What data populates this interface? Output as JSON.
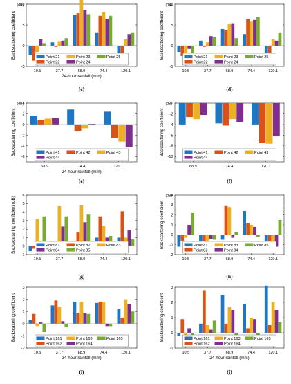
{
  "colors": {
    "series": [
      "#1f77c4",
      "#d95319",
      "#edb120",
      "#7e2f8e",
      "#77ac30"
    ]
  },
  "chart_data": [
    {
      "id": "c",
      "panel_label": "(c)",
      "type": "bar",
      "unit": "(dB)",
      "xlabel": "24-hour rainfall (mm)",
      "ylabel": "Backscattering coefficient",
      "categories": [
        "10.5",
        "37.7",
        "68.9",
        "74.4",
        "120.1"
      ],
      "ylim": [
        -5,
        10
      ],
      "yticks": [
        -5,
        0,
        5,
        10
      ],
      "grid": false,
      "legend_columns": 3,
      "series": [
        {
          "name": "Point 21",
          "values": [
            -2.2,
            0.8,
            7.5,
            3.2,
            -1.8
          ]
        },
        {
          "name": "Point 22",
          "values": [
            -3.6,
            -0.3,
            7.8,
            7.2,
            -2.8
          ]
        },
        {
          "name": "Point 23",
          "values": [
            -1.5,
            1.1,
            11.2,
            8.0,
            1.5
          ]
        },
        {
          "name": "Point 24",
          "values": [
            1.5,
            1.2,
            8.6,
            6.5,
            2.8
          ]
        },
        {
          "name": "Point 25",
          "values": [
            0.6,
            1.8,
            7.6,
            7.2,
            3.2
          ]
        }
      ],
      "legend_order": [
        0,
        2,
        4,
        1,
        3
      ]
    },
    {
      "id": "d",
      "panel_label": "(d)",
      "type": "bar",
      "unit": "(dB)",
      "xlabel": "",
      "ylabel": "Backscattering coefficient",
      "categories": [
        "10.5",
        "37.7",
        "68.9",
        "74.4",
        "120.1"
      ],
      "ylim": [
        -5,
        10
      ],
      "yticks": [
        -5,
        0,
        5,
        10
      ],
      "grid": false,
      "legend_columns": 3,
      "series": [
        {
          "name": "Point 21",
          "values": [
            -1.5,
            1.2,
            4.0,
            2.8,
            -2.2
          ]
        },
        {
          "name": "Point 22",
          "values": [
            -2.5,
            -0.3,
            3.8,
            6.5,
            -4.0
          ]
        },
        {
          "name": "Point 23",
          "values": [
            -2.0,
            0.8,
            5.3,
            5.8,
            1.6
          ]
        },
        {
          "name": "Point 24",
          "values": [
            -0.8,
            2.3,
            5.4,
            6.2,
            1.2
          ]
        },
        {
          "name": "Point 25",
          "values": [
            -3.8,
            2.0,
            1.8,
            7.0,
            3.2
          ]
        }
      ],
      "legend_order": [
        0,
        2,
        4,
        1,
        3
      ]
    },
    {
      "id": "e",
      "panel_label": "(e)",
      "type": "bar",
      "unit": "(dB)",
      "xlabel": "24-hour rainfall (mm)",
      "ylabel": "Backscattering coefficient",
      "categories": [
        "68.9",
        "74.4",
        "120.1"
      ],
      "ylim": [
        -7,
        4
      ],
      "yticks": [
        -6,
        -4,
        -2,
        0,
        2,
        4
      ],
      "grid": false,
      "legend_columns": 3,
      "series": [
        {
          "name": "Point 41",
          "values": [
            1.6,
            2.8,
            2.4
          ]
        },
        {
          "name": "Point 42",
          "values": [
            0.9,
            -1.2,
            -2.6
          ]
        },
        {
          "name": "Point 43",
          "values": [
            1.1,
            -0.7,
            -3.2
          ]
        },
        {
          "name": "Point 44",
          "values": [
            1.2,
            0.1,
            -4.2
          ]
        }
      ],
      "legend_order": [
        0,
        1,
        2,
        3
      ]
    },
    {
      "id": "f",
      "panel_label": "(f)",
      "type": "bar",
      "unit": "(dB)",
      "xlabel": "",
      "ylabel": "Backscattering coefficient",
      "categories": [
        "68.9",
        "74.4",
        "120.1"
      ],
      "ylim": [
        -11,
        0
      ],
      "yticks": [
        -10,
        -8,
        -6,
        -4,
        -2,
        0
      ],
      "grid": false,
      "legend_columns": 3,
      "series": [
        {
          "name": "Point 41",
          "values": [
            -4.0,
            -3.8,
            -4.0
          ]
        },
        {
          "name": "Point 42",
          "values": [
            -2.6,
            -4.2,
            -7.5
          ]
        },
        {
          "name": "Point 43",
          "values": [
            -3.0,
            -3.0,
            -7.6
          ]
        },
        {
          "name": "Point 44",
          "values": [
            -2.2,
            -3.5,
            -6.2
          ]
        }
      ],
      "legend_order": [
        0,
        1,
        2,
        3
      ]
    },
    {
      "id": "g",
      "panel_label": "(g)",
      "type": "bar",
      "unit": "",
      "xlabel": "",
      "ylabel": "Backscattering coefficient (dB)",
      "categories": [
        "10.5",
        "37.7",
        "68.9",
        "74.4",
        "120.1"
      ],
      "ylim": [
        -1,
        6
      ],
      "yticks": [
        -1,
        0,
        1,
        2,
        3,
        4,
        5,
        6
      ],
      "grid": false,
      "legend_columns": 3,
      "series": [
        {
          "name": "Point 81",
          "values": [
            -0.6,
            0.2,
            0.1,
            1.0,
            1.0
          ]
        },
        {
          "name": "Point 82",
          "values": [
            -0.3,
            0.5,
            1.6,
            3.5,
            4.1
          ]
        },
        {
          "name": "Point 83",
          "values": [
            3.2,
            4.7,
            4.8,
            2.4,
            1.0
          ]
        },
        {
          "name": "Point 84",
          "values": [
            0.2,
            2.3,
            2.8,
            1.0,
            1.9
          ]
        },
        {
          "name": "Point 85",
          "values": [
            3.5,
            3.5,
            3.7,
            1.2,
            0.8
          ]
        }
      ],
      "legend_order": [
        0,
        1,
        2,
        3,
        4
      ]
    },
    {
      "id": "h",
      "panel_label": "(h)",
      "type": "bar",
      "unit": "(dB)",
      "xlabel": "",
      "ylabel": "Backscattering coefficient",
      "categories": [
        "10.5",
        "37.7",
        "68.9",
        "74.4",
        "120.1"
      ],
      "ylim": [
        -2,
        4
      ],
      "yticks": [
        -2,
        -1,
        0,
        1,
        2,
        3,
        4
      ],
      "grid": false,
      "legend_columns": 3,
      "series": [
        {
          "name": "Point 81",
          "values": [
            -1.2,
            -1.3,
            -0.5,
            2.4,
            -1.5
          ]
        },
        {
          "name": "Point 82",
          "values": [
            -0.6,
            -0.8,
            2.9,
            1.2,
            -1.3
          ]
        },
        {
          "name": "Point 83",
          "values": [
            -0.3,
            -0.6,
            2.8,
            1.0,
            -1.5
          ]
        },
        {
          "name": "Point 84",
          "values": [
            1.0,
            -0.4,
            -0.3,
            0.8,
            -1.2
          ]
        },
        {
          "name": "Point 85",
          "values": [
            2.2,
            -0.5,
            0.3,
            -0.2,
            1.5
          ]
        }
      ],
      "legend_order": [
        0,
        2,
        4,
        1,
        3
      ]
    },
    {
      "id": "i",
      "panel_label": "(i)",
      "type": "bar",
      "unit": "",
      "xlabel": "24-hour rainfall (mm)",
      "ylabel": "Backscattering coefficient",
      "categories": [
        "10.5",
        "37.7",
        "68.9",
        "74.4",
        "120.1"
      ],
      "ylim": [
        -2,
        3
      ],
      "yticks": [
        -2,
        -1,
        0,
        1,
        2,
        3
      ],
      "grid": false,
      "legend_columns": 3,
      "series": [
        {
          "name": "Point 161",
          "values": [
            0.3,
            1.5,
            1.8,
            1.7,
            1.2
          ]
        },
        {
          "name": "Point 162",
          "values": [
            0.8,
            1.9,
            0.9,
            1.8,
            0.5
          ]
        },
        {
          "name": "Point 163",
          "values": [
            -0.2,
            1.4,
            1.8,
            1.8,
            2.0
          ]
        },
        {
          "name": "Point 164",
          "values": [
            0.1,
            0.2,
            0.9,
            -0.2,
            1.6
          ]
        },
        {
          "name": "Point 165",
          "values": [
            -0.7,
            -0.3,
            0.8,
            -0.2,
            1.0
          ]
        }
      ],
      "legend_order": [
        0,
        2,
        4,
        1,
        3
      ]
    },
    {
      "id": "j",
      "panel_label": "(j)",
      "type": "bar",
      "unit": "",
      "xlabel": "24-hour rainfall (mm)",
      "ylabel": "Backscattering coefficient",
      "categories": [
        "10.5",
        "37.7",
        "68.9",
        "74.4",
        "120.1"
      ],
      "ylim": [
        -1,
        3
      ],
      "yticks": [
        -1,
        0,
        1,
        2,
        3
      ],
      "grid": false,
      "legend_columns": 3,
      "series": [
        {
          "name": "Point 161",
          "values": [
            -0.2,
            0.6,
            2.5,
            1.9,
            3.1
          ]
        },
        {
          "name": "Point 162",
          "values": [
            0.9,
            2.8,
            0.6,
            0.3,
            0.5
          ]
        },
        {
          "name": "Point 163",
          "values": [
            -0.6,
            0.5,
            1.7,
            1.0,
            2.0
          ]
        },
        {
          "name": "Point 164",
          "values": [
            0.3,
            0.2,
            1.5,
            0.9,
            1.5
          ]
        },
        {
          "name": "Point 165",
          "values": [
            -0.8,
            0.8,
            -0.9,
            -0.4,
            0.7
          ]
        }
      ],
      "legend_order": [
        0,
        2,
        4,
        1,
        3
      ]
    }
  ]
}
